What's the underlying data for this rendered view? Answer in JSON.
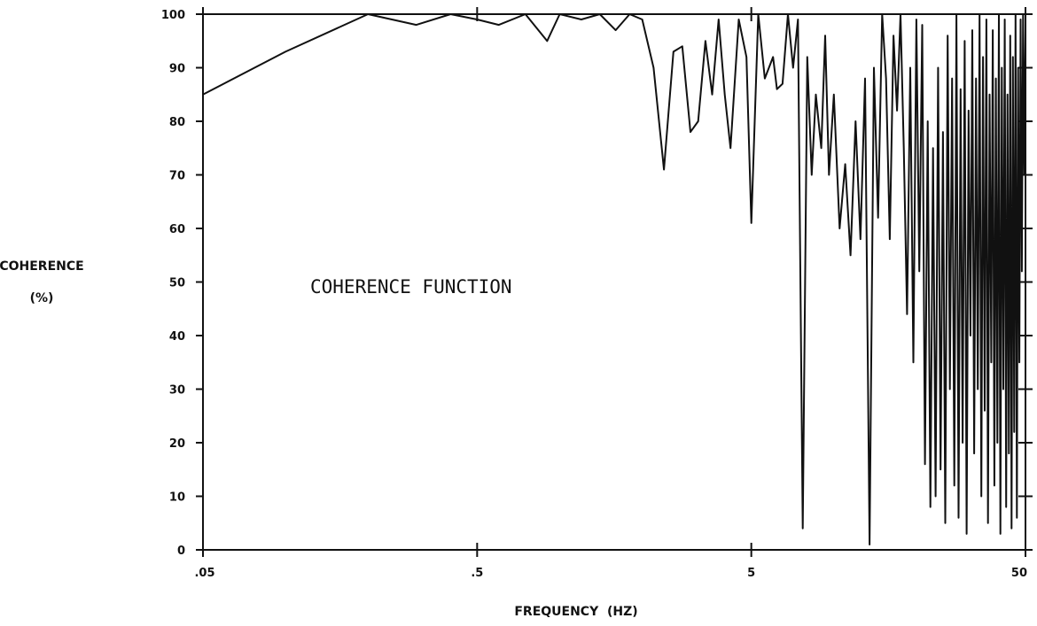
{
  "chart_data": {
    "type": "line",
    "annotation": "COHERENCE FUNCTION",
    "xlabel": "FREQUENCY  (HZ)",
    "ylabel": [
      "COHERENCE",
      "(%)"
    ],
    "x_scale": "log",
    "xlim": [
      0.05,
      50
    ],
    "ylim": [
      0,
      100
    ],
    "x_ticks": [
      0.05,
      0.5,
      5,
      50
    ],
    "x_tick_labels": [
      ".05",
      ".5",
      "5",
      "50"
    ],
    "y_ticks": [
      0,
      10,
      20,
      30,
      40,
      50,
      60,
      70,
      80,
      90,
      100
    ],
    "y_tick_labels": [
      "0",
      "10",
      "20",
      "30",
      "40",
      "50",
      "60",
      "70",
      "80",
      "90",
      "100"
    ],
    "grid": false,
    "series": [
      {
        "x": [
          0.05,
          0.1,
          0.2,
          0.3,
          0.4,
          0.5,
          0.6,
          0.75,
          0.9,
          1.0,
          1.2,
          1.4,
          1.6,
          1.8,
          2.0,
          2.2,
          2.4,
          2.6,
          2.8,
          3.0,
          3.2,
          3.4,
          3.6,
          3.8,
          4.0,
          4.2,
          4.5,
          4.8,
          5.0,
          5.3,
          5.6,
          6.0,
          6.2,
          6.5,
          6.8,
          7.1,
          7.4,
          7.7,
          8.0,
          8.3,
          8.6,
          9.0,
          9.3,
          9.6,
          10.0,
          10.5,
          11.0,
          11.5,
          12.0,
          12.5,
          13.0,
          13.5,
          14.0,
          14.5,
          15.0,
          15.5,
          16.0,
          16.5,
          17.0,
          17.5,
          18.0,
          18.5,
          19.0,
          19.5,
          20.0,
          20.5,
          21.0,
          21.5,
          22.0,
          22.5,
          23.0,
          23.5,
          24.0,
          24.5,
          25.0,
          25.5,
          26.0,
          26.5,
          27.0,
          27.5,
          28.0,
          28.5,
          29.0,
          29.5,
          30.0,
          30.5,
          31.0,
          31.5,
          32.0,
          32.5,
          33.0,
          33.5,
          34.0,
          34.5,
          35.0,
          35.5,
          36.0,
          36.5,
          37.0,
          37.5,
          38.0,
          38.5,
          39.0,
          39.5,
          40.0,
          40.5,
          41.0,
          41.5,
          42.0,
          42.5,
          43.0,
          43.5,
          44.0,
          44.5,
          45.0,
          45.5,
          46.0,
          46.5,
          47.0,
          47.5,
          48.0,
          48.5,
          49.0,
          49.5,
          50.0
        ],
        "y": [
          85,
          93,
          100,
          98,
          100,
          99,
          98,
          100,
          95,
          100,
          99,
          100,
          97,
          100,
          99,
          90,
          71,
          93,
          94,
          78,
          80,
          95,
          85,
          99,
          85,
          75,
          99,
          92,
          61,
          100,
          88,
          92,
          86,
          87,
          100,
          90,
          99,
          4,
          92,
          70,
          85,
          75,
          96,
          70,
          85,
          60,
          72,
          55,
          80,
          58,
          88,
          1,
          90,
          62,
          100,
          88,
          58,
          96,
          82,
          100,
          75,
          44,
          90,
          35,
          99,
          52,
          98,
          16,
          80,
          8,
          75,
          10,
          90,
          15,
          78,
          5,
          96,
          30,
          88,
          12,
          100,
          6,
          86,
          20,
          95,
          3,
          82,
          40,
          97,
          18,
          88,
          30,
          100,
          10,
          92,
          26,
          99,
          5,
          85,
          35,
          97,
          12,
          88,
          20,
          100,
          3,
          90,
          30,
          99,
          8,
          85,
          18,
          96,
          4,
          92,
          22,
          100,
          6,
          90,
          35,
          99,
          52,
          100,
          70,
          97
        ]
      }
    ]
  }
}
